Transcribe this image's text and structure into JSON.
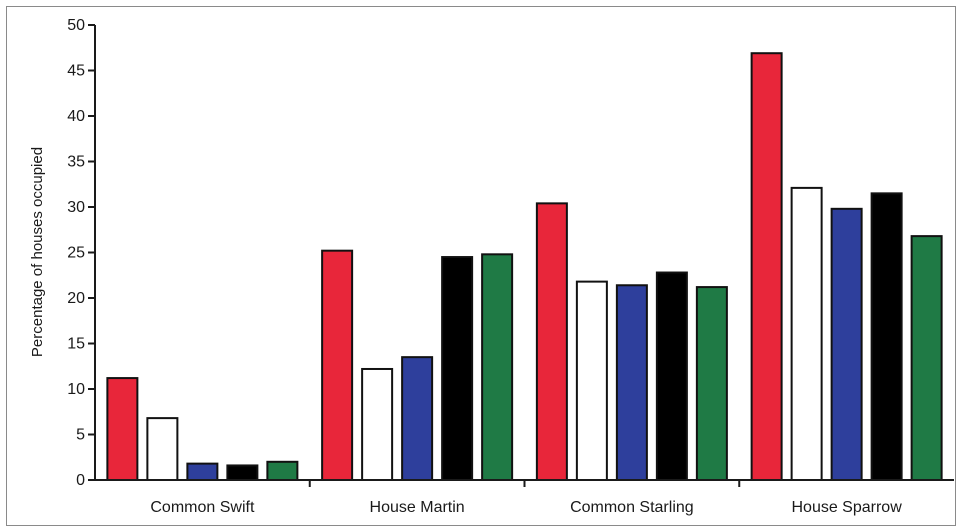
{
  "chart_data": {
    "type": "bar",
    "title": "",
    "xlabel": "",
    "ylabel": "Percentage of houses occupied",
    "ylim": [
      0,
      50
    ],
    "yticks": [
      "0",
      "5",
      "10",
      "15",
      "20",
      "25",
      "30",
      "35",
      "40",
      "45",
      "50"
    ],
    "categories": [
      "Common Swift",
      "House Martin",
      "Common Starling",
      "House Sparrow"
    ],
    "series": [
      {
        "color": "#e8263a",
        "values": [
          11.2,
          25.2,
          30.4,
          46.9
        ]
      },
      {
        "color": "#ffffff",
        "values": [
          6.8,
          12.2,
          21.8,
          32.1
        ]
      },
      {
        "color": "#2e3f9c",
        "values": [
          1.8,
          13.5,
          21.4,
          29.8
        ]
      },
      {
        "color": "#000000",
        "values": [
          1.6,
          24.5,
          22.8,
          31.5
        ]
      },
      {
        "color": "#1f7a45",
        "values": [
          2.0,
          24.8,
          21.2,
          26.8
        ]
      }
    ],
    "grid": false,
    "legend": "none"
  }
}
